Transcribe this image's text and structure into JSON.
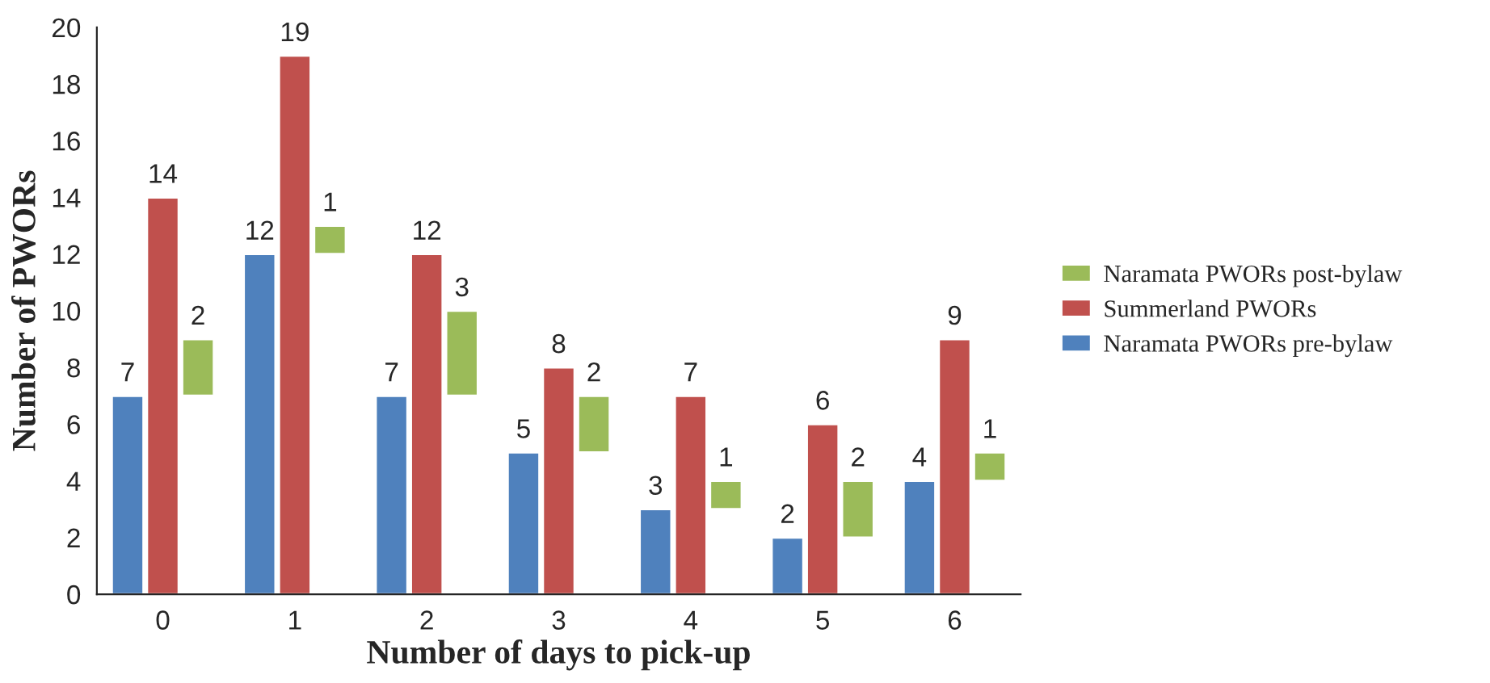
{
  "chart_data": {
    "type": "bar",
    "xlabel": "Number of days to pick-up",
    "ylabel": "Number of PWORs",
    "categories": [
      "0",
      "1",
      "2",
      "3",
      "4",
      "5",
      "6"
    ],
    "series": [
      {
        "name": "Naramata PWORs pre-bylaw",
        "color": "#4f81bd",
        "values": [
          7,
          12,
          7,
          5,
          3,
          2,
          4
        ]
      },
      {
        "name": "Summerland PWORs",
        "color": "#c0504d",
        "values": [
          14,
          19,
          12,
          8,
          7,
          6,
          9
        ]
      },
      {
        "name": "Naramata PWORs post-bylaw",
        "color": "#9bbb59",
        "values": [
          2,
          1,
          3,
          2,
          1,
          2,
          1
        ],
        "base": [
          7,
          12,
          7,
          5,
          3,
          2,
          4
        ]
      }
    ],
    "ylim": [
      0,
      20
    ],
    "yticks": [
      0,
      2,
      4,
      6,
      8,
      10,
      12,
      14,
      16,
      18,
      20
    ],
    "data_labels": true,
    "legend": "right",
    "grid": false
  }
}
